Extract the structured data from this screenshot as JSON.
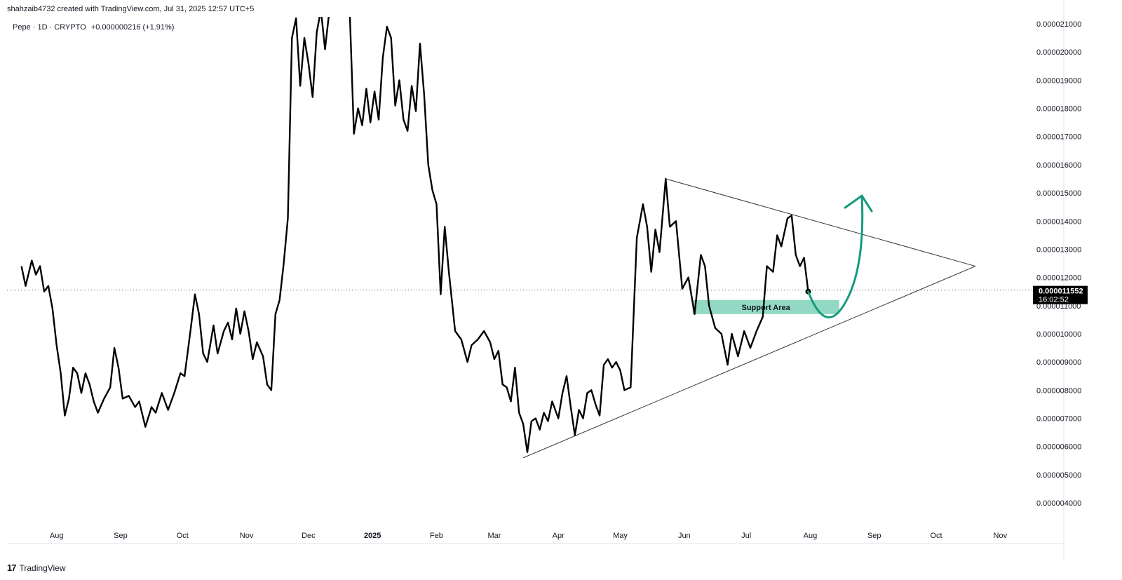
{
  "header": {
    "credit": "shahzaib4732 created with TradingView.com, Jul 31, 2025 12:57 UTC+5",
    "symbol_line": "Pepe · 1D · CRYPTO",
    "change": "+0.000000216 (+1.91%)"
  },
  "price_tag": {
    "price": "0.000011552",
    "countdown": "16:02:52"
  },
  "brand": {
    "logo": "17",
    "name": "TradingView"
  },
  "colors": {
    "line": "#000000",
    "support_fill": "#7fd1b9",
    "arrow": "#149b7e",
    "trendline": "#333333"
  },
  "chart_data": {
    "type": "line",
    "title": "",
    "y_scale": "linear",
    "ylim": [
      3.5e-06,
      2.15e-05
    ],
    "y_ticks": [
      "0.000004000",
      "0.000005000",
      "0.000006000",
      "0.000007000",
      "0.000008000",
      "0.000009000",
      "0.000010000",
      "0.000011000",
      "0.000012000",
      "0.000013000",
      "0.000014000",
      "0.000015000",
      "0.000016000",
      "0.000017000",
      "0.000018000",
      "0.000019000",
      "0.000020000",
      "0.000021000"
    ],
    "x_ticks": [
      "Aug",
      "Sep",
      "Oct",
      "Nov",
      "Dec",
      "2025",
      "Feb",
      "Mar",
      "Apr",
      "May",
      "Jun",
      "Jul",
      "Aug",
      "Sep",
      "Oct",
      "Nov"
    ],
    "xlim": [
      "2024-07-15",
      "2025-11-25"
    ],
    "grid": false,
    "series": [
      {
        "values": [
          [
            "2024-07-15",
            1.24e-05
          ],
          [
            "2024-07-17",
            1.17e-05
          ],
          [
            "2024-07-20",
            1.26e-05
          ],
          [
            "2024-07-22",
            1.21e-05
          ],
          [
            "2024-07-24",
            1.24e-05
          ],
          [
            "2024-07-26",
            1.15e-05
          ],
          [
            "2024-07-28",
            1.17e-05
          ],
          [
            "2024-07-30",
            1.09e-05
          ],
          [
            "2024-08-01",
            9.6e-06
          ],
          [
            "2024-08-03",
            8.6e-06
          ],
          [
            "2024-08-05",
            7.1e-06
          ],
          [
            "2024-08-07",
            7.7e-06
          ],
          [
            "2024-08-09",
            8.8e-06
          ],
          [
            "2024-08-11",
            8.6e-06
          ],
          [
            "2024-08-13",
            7.9e-06
          ],
          [
            "2024-08-15",
            8.6e-06
          ],
          [
            "2024-08-17",
            8.2e-06
          ],
          [
            "2024-08-19",
            7.6e-06
          ],
          [
            "2024-08-21",
            7.2e-06
          ],
          [
            "2024-08-24",
            7.7e-06
          ],
          [
            "2024-08-27",
            8.1e-06
          ],
          [
            "2024-08-29",
            9.5e-06
          ],
          [
            "2024-08-31",
            8.8e-06
          ],
          [
            "2024-09-02",
            7.7e-06
          ],
          [
            "2024-09-05",
            7.8e-06
          ],
          [
            "2024-09-08",
            7.4e-06
          ],
          [
            "2024-09-10",
            7.6e-06
          ],
          [
            "2024-09-13",
            6.7e-06
          ],
          [
            "2024-09-16",
            7.4e-06
          ],
          [
            "2024-09-18",
            7.2e-06
          ],
          [
            "2024-09-21",
            7.9e-06
          ],
          [
            "2024-09-24",
            7.3e-06
          ],
          [
            "2024-09-27",
            7.9e-06
          ],
          [
            "2024-09-30",
            8.6e-06
          ],
          [
            "2024-10-02",
            8.5e-06
          ],
          [
            "2024-10-05",
            1.02e-05
          ],
          [
            "2024-10-07",
            1.14e-05
          ],
          [
            "2024-10-09",
            1.07e-05
          ],
          [
            "2024-10-11",
            9.3e-06
          ],
          [
            "2024-10-13",
            9e-06
          ],
          [
            "2024-10-16",
            1.03e-05
          ],
          [
            "2024-10-18",
            9.3e-06
          ],
          [
            "2024-10-21",
            1.01e-05
          ],
          [
            "2024-10-23",
            1.04e-05
          ],
          [
            "2024-10-25",
            9.8e-06
          ],
          [
            "2024-10-27",
            1.09e-05
          ],
          [
            "2024-10-29",
            1e-05
          ],
          [
            "2024-10-31",
            1.08e-05
          ],
          [
            "2024-11-02",
            1.01e-05
          ],
          [
            "2024-11-04",
            9.1e-06
          ],
          [
            "2024-11-06",
            9.7e-06
          ],
          [
            "2024-11-09",
            9.2e-06
          ],
          [
            "2024-11-11",
            8.2e-06
          ],
          [
            "2024-11-13",
            8e-06
          ],
          [
            "2024-11-15",
            1.07e-05
          ],
          [
            "2024-11-17",
            1.12e-05
          ],
          [
            "2024-11-19",
            1.25e-05
          ],
          [
            "2024-11-21",
            1.41e-05
          ],
          [
            "2024-11-23",
            2.05e-05
          ],
          [
            "2024-11-25",
            2.12e-05
          ],
          [
            "2024-11-27",
            1.88e-05
          ],
          [
            "2024-11-29",
            2.05e-05
          ],
          [
            "2024-12-01",
            1.96e-05
          ],
          [
            "2024-12-03",
            1.84e-05
          ],
          [
            "2024-12-05",
            2.07e-05
          ],
          [
            "2024-12-07",
            2.15e-05
          ],
          [
            "2024-12-09",
            2.01e-05
          ],
          [
            "2024-12-11",
            2.14e-05
          ],
          [
            "2024-12-21",
            2.14e-05
          ],
          [
            "2024-12-23",
            1.71e-05
          ],
          [
            "2024-12-25",
            1.8e-05
          ],
          [
            "2024-12-27",
            1.74e-05
          ],
          [
            "2024-12-29",
            1.87e-05
          ],
          [
            "2024-12-31",
            1.75e-05
          ],
          [
            "2025-01-02",
            1.86e-05
          ],
          [
            "2025-01-04",
            1.76e-05
          ],
          [
            "2025-01-06",
            1.98e-05
          ],
          [
            "2025-01-08",
            2.09e-05
          ],
          [
            "2025-01-10",
            2.05e-05
          ],
          [
            "2025-01-12",
            1.81e-05
          ],
          [
            "2025-01-14",
            1.9e-05
          ],
          [
            "2025-01-16",
            1.76e-05
          ],
          [
            "2025-01-18",
            1.72e-05
          ],
          [
            "2025-01-20",
            1.88e-05
          ],
          [
            "2025-01-22",
            1.79e-05
          ],
          [
            "2025-01-24",
            2.03e-05
          ],
          [
            "2025-01-26",
            1.85e-05
          ],
          [
            "2025-01-28",
            1.6e-05
          ],
          [
            "2025-01-30",
            1.51e-05
          ],
          [
            "2025-02-01",
            1.46e-05
          ],
          [
            "2025-02-03",
            1.14e-05
          ],
          [
            "2025-02-05",
            1.38e-05
          ],
          [
            "2025-02-07",
            1.22e-05
          ],
          [
            "2025-02-10",
            1.01e-05
          ],
          [
            "2025-02-13",
            9.8e-06
          ],
          [
            "2025-02-16",
            9e-06
          ],
          [
            "2025-02-18",
            9.6e-06
          ],
          [
            "2025-02-21",
            9.8e-06
          ],
          [
            "2025-02-24",
            1.01e-05
          ],
          [
            "2025-02-27",
            9.7e-06
          ],
          [
            "2025-03-01",
            9.1e-06
          ],
          [
            "2025-03-03",
            9.4e-06
          ],
          [
            "2025-03-05",
            8.2e-06
          ],
          [
            "2025-03-07",
            8.1e-06
          ],
          [
            "2025-03-09",
            7.6e-06
          ],
          [
            "2025-03-11",
            8.8e-06
          ],
          [
            "2025-03-13",
            7.2e-06
          ],
          [
            "2025-03-15",
            6.8e-06
          ],
          [
            "2025-03-17",
            5.8e-06
          ],
          [
            "2025-03-19",
            6.9e-06
          ],
          [
            "2025-03-21",
            7e-06
          ],
          [
            "2025-03-23",
            6.6e-06
          ],
          [
            "2025-03-25",
            7.2e-06
          ],
          [
            "2025-03-27",
            6.9e-06
          ],
          [
            "2025-03-29",
            7.6e-06
          ],
          [
            "2025-04-01",
            7e-06
          ],
          [
            "2025-04-03",
            7.9e-06
          ],
          [
            "2025-04-05",
            8.5e-06
          ],
          [
            "2025-04-07",
            7.4e-06
          ],
          [
            "2025-04-09",
            6.4e-06
          ],
          [
            "2025-04-11",
            7.3e-06
          ],
          [
            "2025-04-13",
            7e-06
          ],
          [
            "2025-04-15",
            7.9e-06
          ],
          [
            "2025-04-17",
            8e-06
          ],
          [
            "2025-04-19",
            7.5e-06
          ],
          [
            "2025-04-21",
            7.1e-06
          ],
          [
            "2025-04-23",
            8.9e-06
          ],
          [
            "2025-04-25",
            9.1e-06
          ],
          [
            "2025-04-27",
            8.8e-06
          ],
          [
            "2025-04-29",
            9e-06
          ],
          [
            "2025-05-01",
            8.7e-06
          ],
          [
            "2025-05-03",
            8e-06
          ],
          [
            "2025-05-06",
            8.1e-06
          ],
          [
            "2025-05-09",
            1.34e-05
          ],
          [
            "2025-05-12",
            1.46e-05
          ],
          [
            "2025-05-14",
            1.38e-05
          ],
          [
            "2025-05-16",
            1.22e-05
          ],
          [
            "2025-05-18",
            1.37e-05
          ],
          [
            "2025-05-20",
            1.29e-05
          ],
          [
            "2025-05-23",
            1.55e-05
          ],
          [
            "2025-05-25",
            1.38e-05
          ],
          [
            "2025-05-28",
            1.4e-05
          ],
          [
            "2025-05-31",
            1.16e-05
          ],
          [
            "2025-06-03",
            1.2e-05
          ],
          [
            "2025-06-06",
            1.07e-05
          ],
          [
            "2025-06-09",
            1.28e-05
          ],
          [
            "2025-06-11",
            1.24e-05
          ],
          [
            "2025-06-13",
            1.1e-05
          ],
          [
            "2025-06-16",
            1.02e-05
          ],
          [
            "2025-06-19",
            1e-05
          ],
          [
            "2025-06-22",
            8.9e-06
          ],
          [
            "2025-06-24",
            1e-05
          ],
          [
            "2025-06-27",
            9.2e-06
          ],
          [
            "2025-06-30",
            1.01e-05
          ],
          [
            "2025-07-03",
            9.5e-06
          ],
          [
            "2025-07-06",
            1.01e-05
          ],
          [
            "2025-07-09",
            1.06e-05
          ],
          [
            "2025-07-11",
            1.24e-05
          ],
          [
            "2025-07-14",
            1.22e-05
          ],
          [
            "2025-07-16",
            1.35e-05
          ],
          [
            "2025-07-18",
            1.31e-05
          ],
          [
            "2025-07-21",
            1.41e-05
          ],
          [
            "2025-07-23",
            1.42e-05
          ],
          [
            "2025-07-25",
            1.28e-05
          ],
          [
            "2025-07-27",
            1.24e-05
          ],
          [
            "2025-07-29",
            1.27e-05
          ],
          [
            "2025-07-31",
            1.15e-05
          ]
        ]
      }
    ],
    "trendlines": [
      {
        "from": [
          "2025-03-15",
          5.6e-06
        ],
        "to": [
          "2025-10-20",
          1.24e-05
        ]
      },
      {
        "from": [
          "2025-05-23",
          1.55e-05
        ],
        "to": [
          "2025-10-20",
          1.24e-05
        ]
      }
    ],
    "support_zone": {
      "label": "Support Area",
      "x": [
        "2025-06-05",
        "2025-08-15"
      ],
      "y": [
        1.07e-05,
        1.12e-05
      ]
    },
    "last_price": 1.1552e-05,
    "projection_arrow": {
      "from": [
        "2025-07-31",
        1.15e-05
      ],
      "via": [
        "2025-08-12",
        1.1e-05
      ],
      "to": [
        "2025-08-26",
        1.49e-05
      ]
    }
  }
}
